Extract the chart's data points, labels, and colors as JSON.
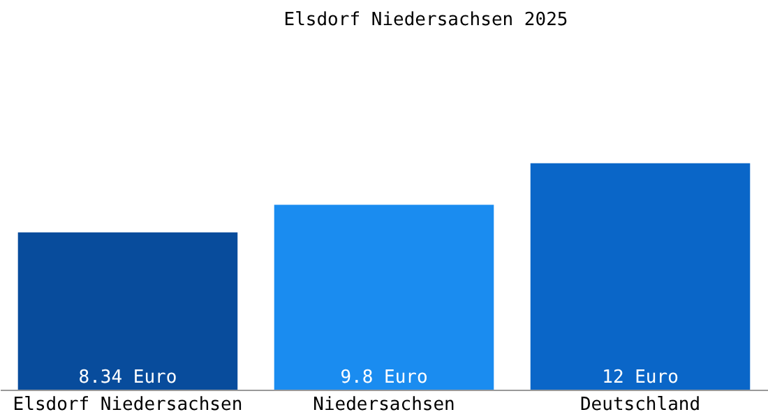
{
  "chart_data": {
    "type": "bar",
    "title": "Elsdorf Niedersachsen 2025",
    "categories": [
      "Elsdorf Niedersachsen",
      "Niedersachsen",
      "Deutschland"
    ],
    "values": [
      8.34,
      9.8,
      12
    ],
    "colors": [
      "#084c9c",
      "#1a8cf0",
      "#0a66c8"
    ],
    "value_labels": [
      "8.34 Euro",
      "9.8 Euro",
      "12 Euro"
    ]
  }
}
